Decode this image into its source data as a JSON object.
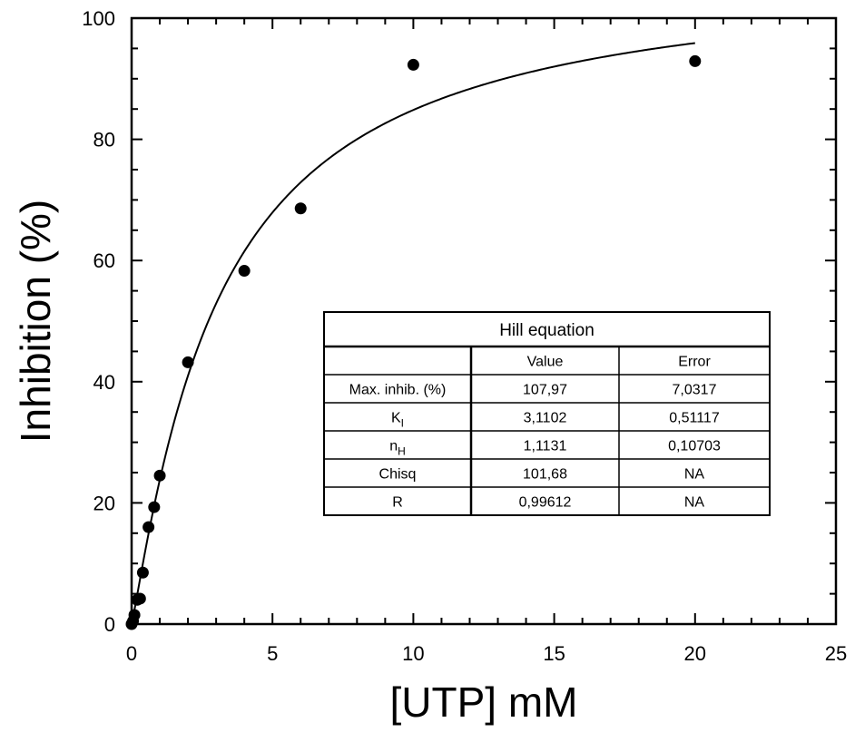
{
  "chart_data": {
    "type": "scatter",
    "xlabel": "[UTP] mM",
    "ylabel": "Inhibition (%)",
    "xlim": [
      0,
      25
    ],
    "ylim": [
      0,
      100
    ],
    "x_ticks": [
      0,
      5,
      10,
      15,
      20,
      25
    ],
    "y_ticks": [
      0,
      20,
      40,
      60,
      80,
      100
    ],
    "grid": false,
    "series": [
      {
        "kind": "points",
        "x": [
          0.0,
          0.05,
          0.1,
          0.2,
          0.3,
          0.4,
          0.6,
          0.8,
          1.0,
          2.0,
          4.0,
          6.0,
          10.0,
          20.0
        ],
        "y": [
          0.0,
          0.5,
          1.5,
          4.0,
          4.2,
          8.5,
          16.0,
          19.3,
          24.5,
          43.2,
          58.3,
          68.6,
          92.3,
          92.9
        ]
      },
      {
        "kind": "fit",
        "model": "Hill",
        "params": {
          "max": 107.97,
          "k": 3.1102,
          "n": 1.1131
        },
        "x_range": [
          0,
          20
        ]
      }
    ],
    "table": {
      "title": "Hill equation",
      "headers": [
        "",
        "Value",
        "Error"
      ],
      "rows": [
        {
          "label": "Max. inhib. (%)",
          "label_sub": "",
          "value": "107,97",
          "error": "7,0317"
        },
        {
          "label": "K",
          "label_sub": "I",
          "value": "3,1102",
          "error": "0,51117"
        },
        {
          "label": "n",
          "label_sub": "H",
          "value": "1,1131",
          "error": "0,10703"
        },
        {
          "label": "Chisq",
          "label_sub": "",
          "value": "101,68",
          "error": "NA"
        },
        {
          "label": "R",
          "label_sub": "",
          "value": "0,99612",
          "error": "NA"
        }
      ]
    }
  }
}
